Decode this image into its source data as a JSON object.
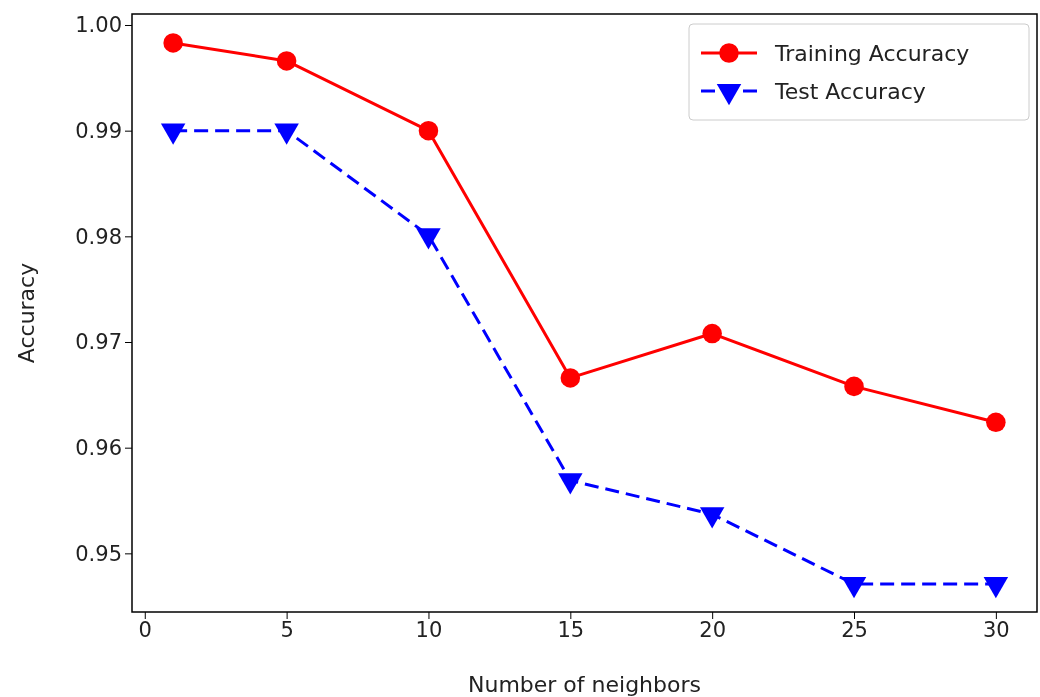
{
  "chart_data": {
    "type": "line",
    "xlabel": "Number of neighbors",
    "ylabel": "Accuracy",
    "x": [
      1,
      5,
      10,
      15,
      20,
      25,
      30
    ],
    "series": [
      {
        "name": "Training Accuracy",
        "color": "#ff0000",
        "marker": "circle",
        "line_style": "solid",
        "values": [
          0.9983,
          0.9966,
          0.99,
          0.9666,
          0.9708,
          0.9658,
          0.9624
        ]
      },
      {
        "name": "Test Accuracy",
        "color": "#0000ff",
        "marker": "triangle",
        "line_style": "dashed",
        "values": [
          0.99,
          0.99,
          0.9801,
          0.9569,
          0.9537,
          0.9471,
          0.9471
        ]
      }
    ],
    "xlim": [
      -0.45,
      31.45
    ],
    "xticks": [
      0,
      5,
      10,
      15,
      20,
      25,
      30
    ],
    "ylim": [
      0.94445,
      1.00104
    ],
    "yticks": [
      {
        "value": 0.95,
        "label": "0.95"
      },
      {
        "value": 0.96,
        "label": "0.96"
      },
      {
        "value": 0.97,
        "label": "0.97"
      },
      {
        "value": 0.98,
        "label": "0.98"
      },
      {
        "value": 0.99,
        "label": "0.99"
      },
      {
        "value": 1.0,
        "label": "1.00"
      }
    ],
    "grid": false,
    "legend": "top right"
  }
}
